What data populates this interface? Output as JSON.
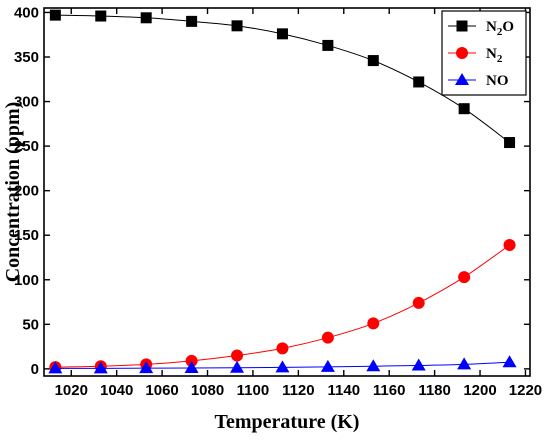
{
  "chart_data": {
    "type": "line",
    "xlabel": "Temperature (K)",
    "ylabel": "Concentration (ppm)",
    "xlim": [
      1008,
      1222
    ],
    "ylim": [
      -8,
      405
    ],
    "xticks": [
      1020,
      1040,
      1060,
      1080,
      1100,
      1120,
      1140,
      1160,
      1180,
      1200,
      1220
    ],
    "yticks": [
      0,
      50,
      100,
      150,
      200,
      250,
      300,
      350,
      400
    ],
    "legend_position": "top-right",
    "grid": false,
    "x": [
      1013,
      1033,
      1053,
      1073,
      1093,
      1113,
      1133,
      1153,
      1173,
      1193,
      1213
    ],
    "series": [
      {
        "name": "N2O",
        "legend_main": "N",
        "legend_sub": "2",
        "legend_tail": "O",
        "marker": "square",
        "color": "#000000",
        "values": [
          397,
          396,
          394,
          390,
          385,
          376,
          363,
          346,
          322,
          292,
          254
        ]
      },
      {
        "name": "N2",
        "legend_main": "N",
        "legend_sub": "2",
        "legend_tail": "",
        "marker": "circle",
        "color": "#ff0000",
        "values": [
          2,
          3,
          5,
          9,
          15,
          23,
          35,
          51,
          74,
          103,
          139
        ]
      },
      {
        "name": "NO",
        "legend_main": "NO",
        "legend_sub": "",
        "legend_tail": "",
        "marker": "triangle",
        "color": "#0000ff",
        "values": [
          0.5,
          0.6,
          0.8,
          1,
          1.3,
          1.7,
          2.3,
          3,
          3.8,
          5,
          7.5
        ]
      }
    ]
  }
}
